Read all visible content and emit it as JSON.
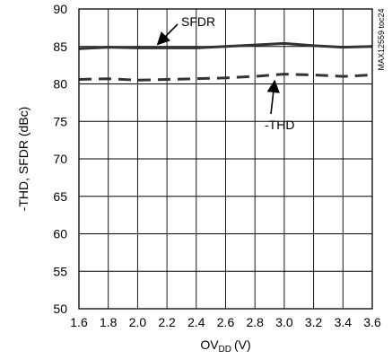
{
  "chart_data": {
    "type": "line",
    "title": "",
    "xlabel": "OV",
    "xlabel_sub": "DD",
    "xlabel_unit": "(V)",
    "ylabel": "-THD, SFDR (dBc)",
    "xlim": [
      1.6,
      3.6
    ],
    "ylim": [
      50,
      90
    ],
    "x_ticks": [
      "1.6",
      "1.8",
      "2.0",
      "2.2",
      "2.4",
      "2.6",
      "2.8",
      "3.0",
      "3.2",
      "3.4",
      "3.6"
    ],
    "y_ticks": [
      "50",
      "55",
      "60",
      "65",
      "70",
      "75",
      "80",
      "85",
      "90"
    ],
    "grid": true,
    "x": [
      1.6,
      1.8,
      2.0,
      2.2,
      2.4,
      2.6,
      2.8,
      3.0,
      3.2,
      3.4,
      3.6
    ],
    "series": [
      {
        "name": "SFDR",
        "style": "solid",
        "color": "#333333",
        "values": [
          84.7,
          84.9,
          84.8,
          84.8,
          84.8,
          85.0,
          85.2,
          85.4,
          85.1,
          84.9,
          85.0
        ]
      },
      {
        "name": "-THD",
        "style": "dashed",
        "color": "#333333",
        "values": [
          80.6,
          80.7,
          80.5,
          80.6,
          80.7,
          80.8,
          81.0,
          81.3,
          81.2,
          81.0,
          81.2
        ]
      }
    ],
    "annotations": [
      {
        "text": "SFDR",
        "series": "SFDR"
      },
      {
        "text": "-THD",
        "series": "-THD"
      }
    ],
    "side_label": "MAX12559 toc24"
  }
}
